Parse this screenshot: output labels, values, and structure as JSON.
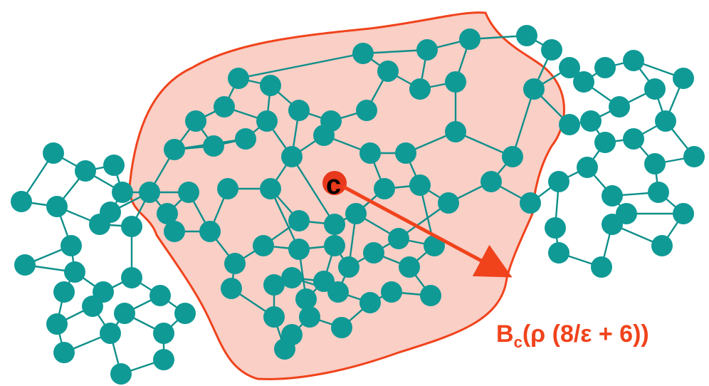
{
  "colors": {
    "node": "#0f9a96",
    "edge": "#0f8f8a",
    "ball_fill": "#f9cfc6",
    "ball_stroke": "#f0431c",
    "center_node": "#e8391d",
    "arrow": "#f0431c",
    "label": "#f0431c"
  },
  "center": {
    "label": "c"
  },
  "ball_label": {
    "prefix": "B",
    "subscript": "c",
    "body": "(ρ (8/ε + 6))"
  }
}
